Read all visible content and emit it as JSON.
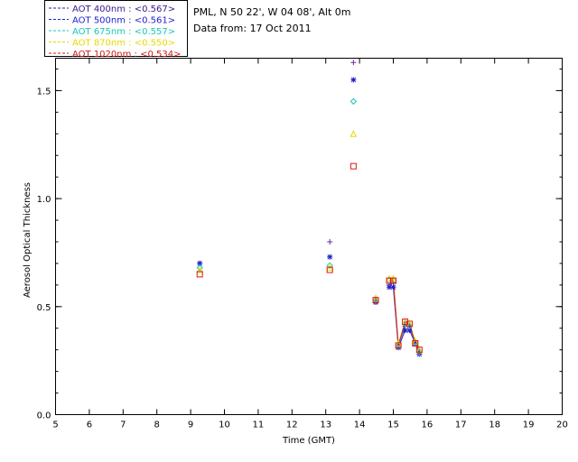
{
  "header": {
    "site_line": "PML, N 50 22', W 04 08', Alt 0m",
    "date_line": "Data from: 17 Oct 2011"
  },
  "legend": [
    {
      "label": "AOT  400nm : <0.567>",
      "color": "#3a1a8a"
    },
    {
      "label": "AOT  500nm : <0.561>",
      "color": "#2020d0"
    },
    {
      "label": "AOT  675nm : <0.557>",
      "color": "#16c8b8"
    },
    {
      "label": "AOT  870nm : <0.550>",
      "color": "#e8d800"
    },
    {
      "label": "AOT 1020nm : <0.534>",
      "color": "#d01818"
    }
  ],
  "chart_data": {
    "type": "scatter",
    "xlabel": "Time (GMT)",
    "ylabel": "Aerosol Optical Thickness",
    "xlim": [
      5,
      20
    ],
    "ylim": [
      0,
      1.65
    ],
    "xticks": [
      "5",
      "6",
      "7",
      "8",
      "9",
      "10",
      "11",
      "12",
      "13",
      "14",
      "15",
      "16",
      "17",
      "18",
      "19",
      "20"
    ],
    "yticks": [
      "0.0",
      "0.5",
      "1.0",
      "1.5"
    ],
    "grid": false,
    "legend_position": "top-left, outside plot",
    "series": [
      {
        "name": "AOT  400nm",
        "color": "#6a2aa0",
        "marker": "plus",
        "x": [
          9.27,
          13.12,
          13.82,
          14.48,
          14.88,
          15.0,
          15.15,
          15.35,
          15.48,
          15.65,
          15.77
        ],
        "y": [
          0.7,
          0.8,
          1.63,
          0.53,
          0.6,
          0.61,
          0.32,
          0.41,
          0.41,
          0.34,
          0.29
        ]
      },
      {
        "name": "AOT  500nm",
        "color": "#2020d0",
        "marker": "asterisk",
        "x": [
          9.27,
          13.12,
          13.82,
          14.48,
          14.88,
          15.0,
          15.15,
          15.35,
          15.48,
          15.65,
          15.77
        ],
        "y": [
          0.7,
          0.73,
          1.55,
          0.52,
          0.59,
          0.59,
          0.31,
          0.39,
          0.39,
          0.33,
          0.28
        ]
      },
      {
        "name": "AOT  675nm",
        "color": "#16c8b8",
        "marker": "diamond",
        "x": [
          9.27,
          13.12,
          13.82,
          14.48,
          14.88,
          15.0,
          15.15,
          15.35,
          15.48,
          15.65,
          15.77
        ],
        "y": [
          0.68,
          0.69,
          1.45,
          0.53,
          0.62,
          0.62,
          0.32,
          0.42,
          0.41,
          0.33,
          0.29
        ]
      },
      {
        "name": "AOT  870nm",
        "color": "#e8d800",
        "marker": "triangle",
        "x": [
          9.27,
          13.12,
          13.82,
          14.48,
          14.88,
          15.0,
          15.15,
          15.35,
          15.48,
          15.65,
          15.77
        ],
        "y": [
          0.67,
          0.68,
          1.3,
          0.54,
          0.63,
          0.63,
          0.33,
          0.43,
          0.42,
          0.34,
          0.3
        ]
      },
      {
        "name": "AOT 1020nm",
        "color": "#e01818",
        "marker": "square",
        "x": [
          9.27,
          13.12,
          13.82,
          14.48,
          14.88,
          15.0,
          15.15,
          15.35,
          15.48,
          15.65,
          15.77
        ],
        "y": [
          0.65,
          0.67,
          1.15,
          0.53,
          0.62,
          0.62,
          0.32,
          0.43,
          0.42,
          0.33,
          0.3
        ]
      }
    ]
  }
}
